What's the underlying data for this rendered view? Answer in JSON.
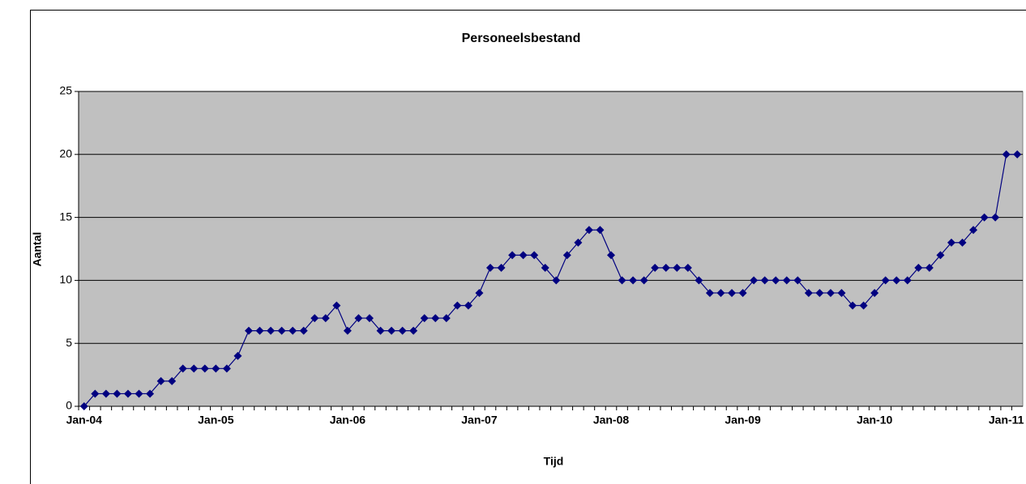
{
  "chart_data": {
    "type": "line",
    "title": "Personeelsbestand",
    "x_label": "Tijd",
    "y_label": "Aantal",
    "categories": [
      "Jan-04",
      null,
      null,
      null,
      null,
      null,
      null,
      null,
      null,
      null,
      null,
      null,
      "Jan-05",
      null,
      null,
      null,
      null,
      null,
      null,
      null,
      null,
      null,
      null,
      null,
      "Jan-06",
      null,
      null,
      null,
      null,
      null,
      null,
      null,
      null,
      null,
      null,
      null,
      "Jan-07",
      null,
      null,
      null,
      null,
      null,
      null,
      null,
      null,
      null,
      null,
      null,
      "Jan-08",
      null,
      null,
      null,
      null,
      null,
      null,
      null,
      null,
      null,
      null,
      null,
      "Jan-09",
      null,
      null,
      null,
      null,
      null,
      null,
      null,
      null,
      null,
      null,
      null,
      "Jan-10",
      null,
      null,
      null,
      null,
      null,
      null,
      null,
      null,
      null,
      null,
      null,
      "Jan-11",
      null
    ],
    "series": [
      {
        "color": "#000080",
        "values": [
          0,
          1,
          1,
          1,
          1,
          1,
          1,
          2,
          2,
          3,
          3,
          3,
          3,
          3,
          4,
          6,
          6,
          6,
          6,
          6,
          6,
          7,
          7,
          8,
          6,
          7,
          7,
          6,
          6,
          6,
          6,
          7,
          7,
          7,
          8,
          8,
          9,
          11,
          11,
          12,
          12,
          12,
          11,
          10,
          12,
          13,
          14,
          14,
          12,
          10,
          10,
          10,
          11,
          11,
          11,
          11,
          10,
          9,
          9,
          9,
          9,
          10,
          10,
          10,
          10,
          10,
          9,
          9,
          9,
          9,
          8,
          8,
          9,
          10,
          10,
          10,
          11,
          11,
          12,
          13,
          13,
          14,
          15,
          15,
          20,
          20
        ]
      }
    ],
    "ylim": [
      0,
      25
    ],
    "yticks": [
      0,
      5,
      10,
      15,
      20,
      25
    ],
    "grid": true,
    "plot_background": "#c0c0c0"
  }
}
